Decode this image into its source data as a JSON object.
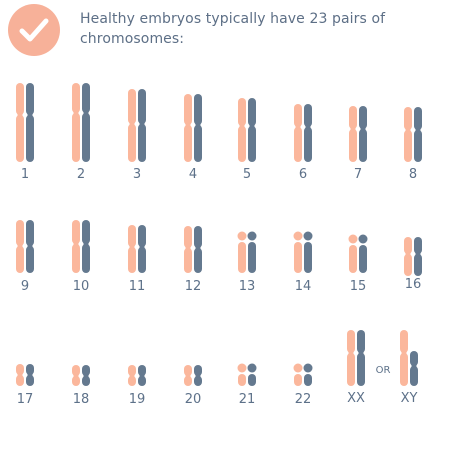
{
  "header": {
    "text": "Healthy embryos typically have 23 pairs of chromosomes:",
    "icon": "check-circle-icon"
  },
  "colors": {
    "maternal": "#fbb79c",
    "paternal": "#64798f",
    "label": "#5d7189",
    "badge": "#f7b199"
  },
  "chromosomes": [
    {
      "label": "1"
    },
    {
      "label": "2"
    },
    {
      "label": "3"
    },
    {
      "label": "4"
    },
    {
      "label": "5"
    },
    {
      "label": "6"
    },
    {
      "label": "7"
    },
    {
      "label": "8"
    },
    {
      "label": "9"
    },
    {
      "label": "10"
    },
    {
      "label": "11"
    },
    {
      "label": "12"
    },
    {
      "label": "13"
    },
    {
      "label": "14"
    },
    {
      "label": "15"
    },
    {
      "label": "16"
    },
    {
      "label": "17"
    },
    {
      "label": "18"
    },
    {
      "label": "19"
    },
    {
      "label": "20"
    },
    {
      "label": "21"
    },
    {
      "label": "22"
    },
    {
      "label": "XX"
    },
    {
      "label": "XY"
    }
  ],
  "separator": "OR"
}
